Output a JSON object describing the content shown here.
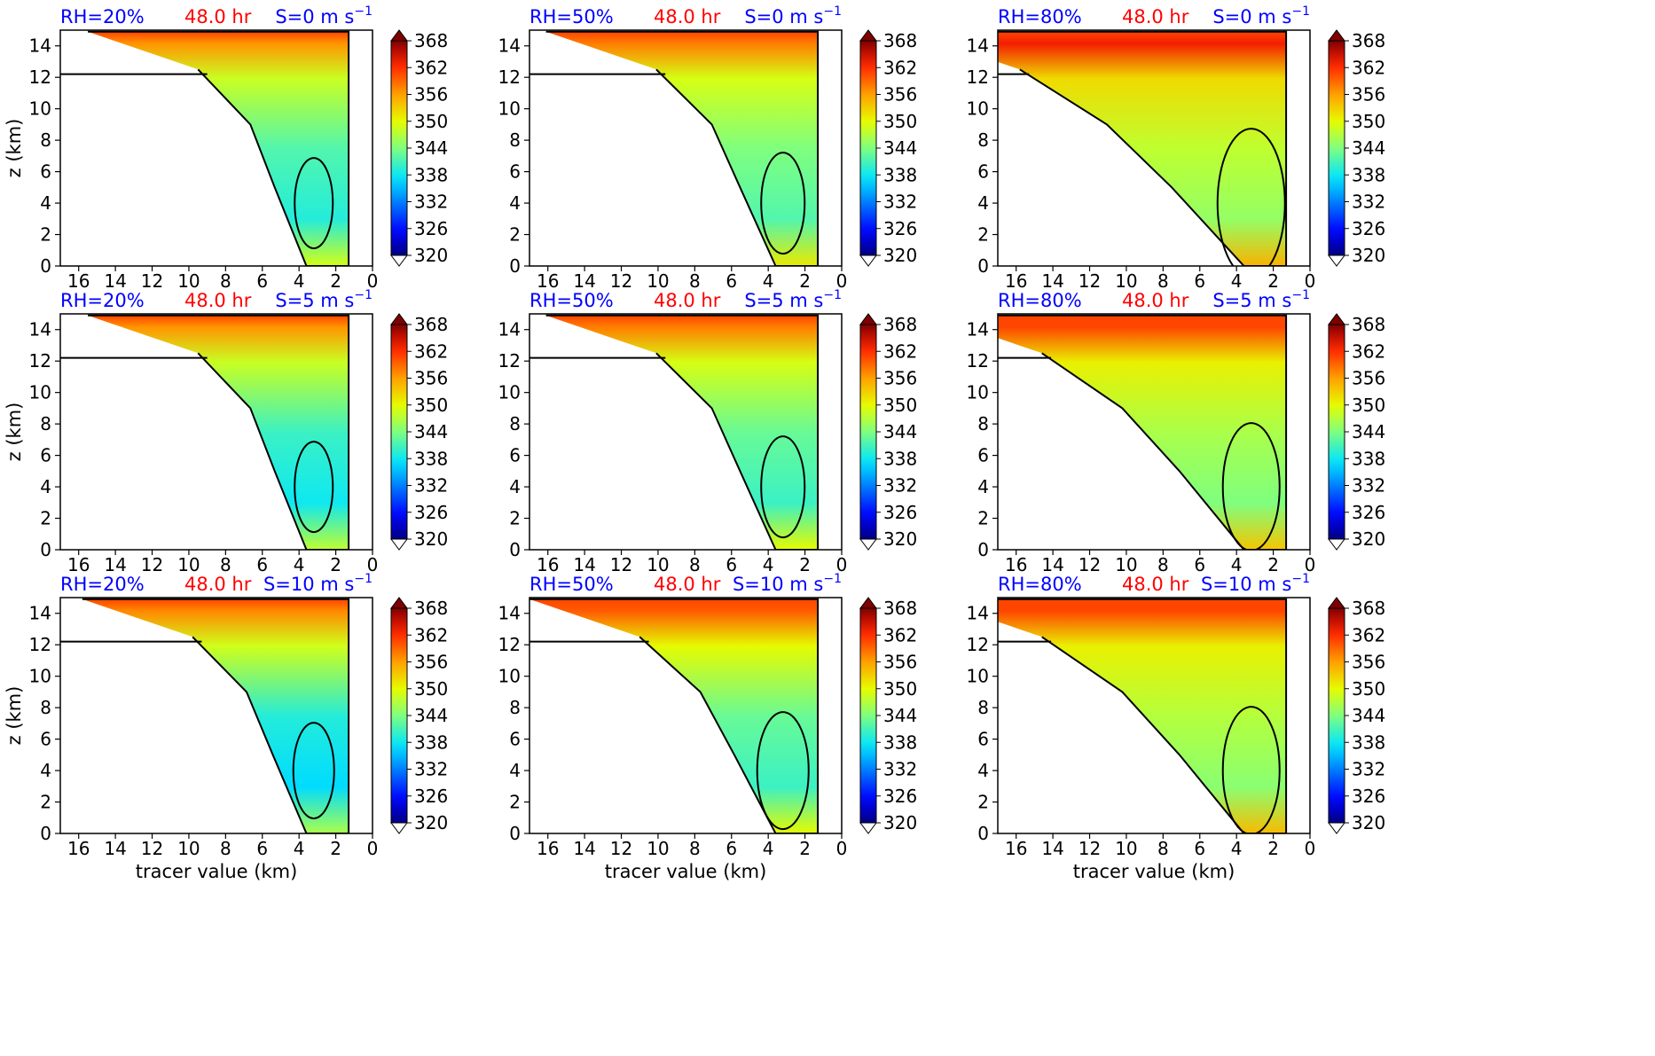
{
  "figure": {
    "colors": {
      "rh": "#0000ff",
      "time": "#ff0000",
      "shear": "#0000ff",
      "contour": "#000000",
      "frame": "#000000"
    },
    "colorbar": {
      "ticks": [
        "368",
        "362",
        "356",
        "350",
        "344",
        "338",
        "332",
        "326",
        "320"
      ],
      "min": 320,
      "max": 368,
      "extend": "both"
    },
    "xticks": [
      "16",
      "14",
      "12",
      "10",
      "8",
      "6",
      "4",
      "2",
      "0"
    ],
    "yticks": [
      "0",
      "2",
      "4",
      "6",
      "8",
      "10",
      "12",
      "14"
    ],
    "xlabel": "tracer value (km)",
    "ylabel": "z (km)"
  },
  "chart_data": [
    {
      "type": "heatmap",
      "row": 0,
      "col": 0,
      "rh_label": "RH=20%",
      "time_label": "48.0 hr",
      "shear_label": "S=0 m s",
      "shear_exp": "−1",
      "xlim": [
        17,
        0
      ],
      "ylim": [
        0,
        15
      ],
      "warm_top": 0.25,
      "cold_core": 0.6
    },
    {
      "type": "heatmap",
      "row": 0,
      "col": 1,
      "rh_label": "RH=50%",
      "time_label": "48.0 hr",
      "shear_label": "S=0 m s",
      "shear_exp": "−1",
      "xlim": [
        17,
        0
      ],
      "ylim": [
        0,
        15
      ],
      "warm_top": 0.35,
      "cold_core": 0.4
    },
    {
      "type": "heatmap",
      "row": 0,
      "col": 2,
      "rh_label": "RH=80%",
      "time_label": "48.0 hr",
      "shear_label": "S=0 m s",
      "shear_exp": "−1",
      "xlim": [
        17,
        0
      ],
      "ylim": [
        0,
        15
      ],
      "warm_top": 0.8,
      "cold_core": 0.1
    },
    {
      "type": "heatmap",
      "row": 1,
      "col": 0,
      "rh_label": "RH=20%",
      "time_label": "48.0 hr",
      "shear_label": "S=5 m s",
      "shear_exp": "−1",
      "xlim": [
        17,
        0
      ],
      "ylim": [
        0,
        15
      ],
      "warm_top": 0.25,
      "cold_core": 0.7
    },
    {
      "type": "heatmap",
      "row": 1,
      "col": 1,
      "rh_label": "RH=50%",
      "time_label": "48.0 hr",
      "shear_label": "S=5 m s",
      "shear_exp": "−1",
      "xlim": [
        17,
        0
      ],
      "ylim": [
        0,
        15
      ],
      "warm_top": 0.35,
      "cold_core": 0.5
    },
    {
      "type": "heatmap",
      "row": 1,
      "col": 2,
      "rh_label": "RH=80%",
      "time_label": "48.0 hr",
      "shear_label": "S=5 m s",
      "shear_exp": "−1",
      "xlim": [
        17,
        0
      ],
      "ylim": [
        0,
        15
      ],
      "warm_top": 0.6,
      "cold_core": 0.2
    },
    {
      "type": "heatmap",
      "row": 2,
      "col": 0,
      "rh_label": "RH=20%",
      "time_label": "48.0 hr",
      "shear_label": "S=10 m s",
      "shear_exp": "−1",
      "xlim": [
        17,
        0
      ],
      "ylim": [
        0,
        15
      ],
      "warm_top": 0.3,
      "cold_core": 0.8
    },
    {
      "type": "heatmap",
      "row": 2,
      "col": 1,
      "rh_label": "RH=50%",
      "time_label": "48.0 hr",
      "shear_label": "S=10 m s",
      "shear_exp": "−1",
      "xlim": [
        17,
        0
      ],
      "ylim": [
        0,
        15
      ],
      "warm_top": 0.5,
      "cold_core": 0.5
    },
    {
      "type": "heatmap",
      "row": 2,
      "col": 2,
      "rh_label": "RH=80%",
      "time_label": "48.0 hr",
      "shear_label": "S=10 m s",
      "shear_exp": "−1",
      "xlim": [
        17,
        0
      ],
      "ylim": [
        0,
        15
      ],
      "warm_top": 0.6,
      "cold_core": 0.15
    }
  ]
}
